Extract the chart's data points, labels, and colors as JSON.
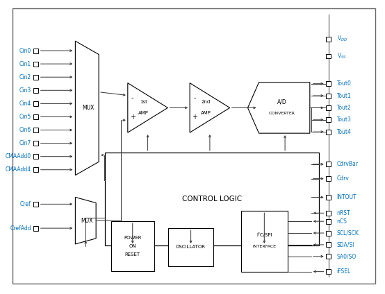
{
  "fig_width": 5.54,
  "fig_height": 4.24,
  "dpi": 100,
  "bg_color": "#ffffff",
  "left_label_color": "#0070c0",
  "right_label_color": "#0070c0",
  "line_color": "#333333",
  "text_color": "#000000",
  "left_labels": [
    "Cin0",
    "Cin1",
    "Cin2",
    "Cin3",
    "Cin4",
    "Cin5",
    "Cin6",
    "Cin7",
    "CMAAdd0",
    "CMAAdd4"
  ],
  "bottom_left_labels": [
    "Cref",
    "CrefAdd"
  ],
  "right_labels_top": [
    "V$_{DD}$",
    "V$_{SS}$"
  ],
  "right_labels_tout": [
    "Tout0",
    "Tout1",
    "Tout2",
    "Tout3",
    "Tout4"
  ],
  "right_labels_mid": [
    "CdrvBar",
    "Cdrv",
    "INTOUT",
    "nRST"
  ],
  "right_labels_bot": [
    "nCS",
    "SCL/SCK",
    "SDA/SI",
    "SA0/SO",
    "iFSEL"
  ]
}
